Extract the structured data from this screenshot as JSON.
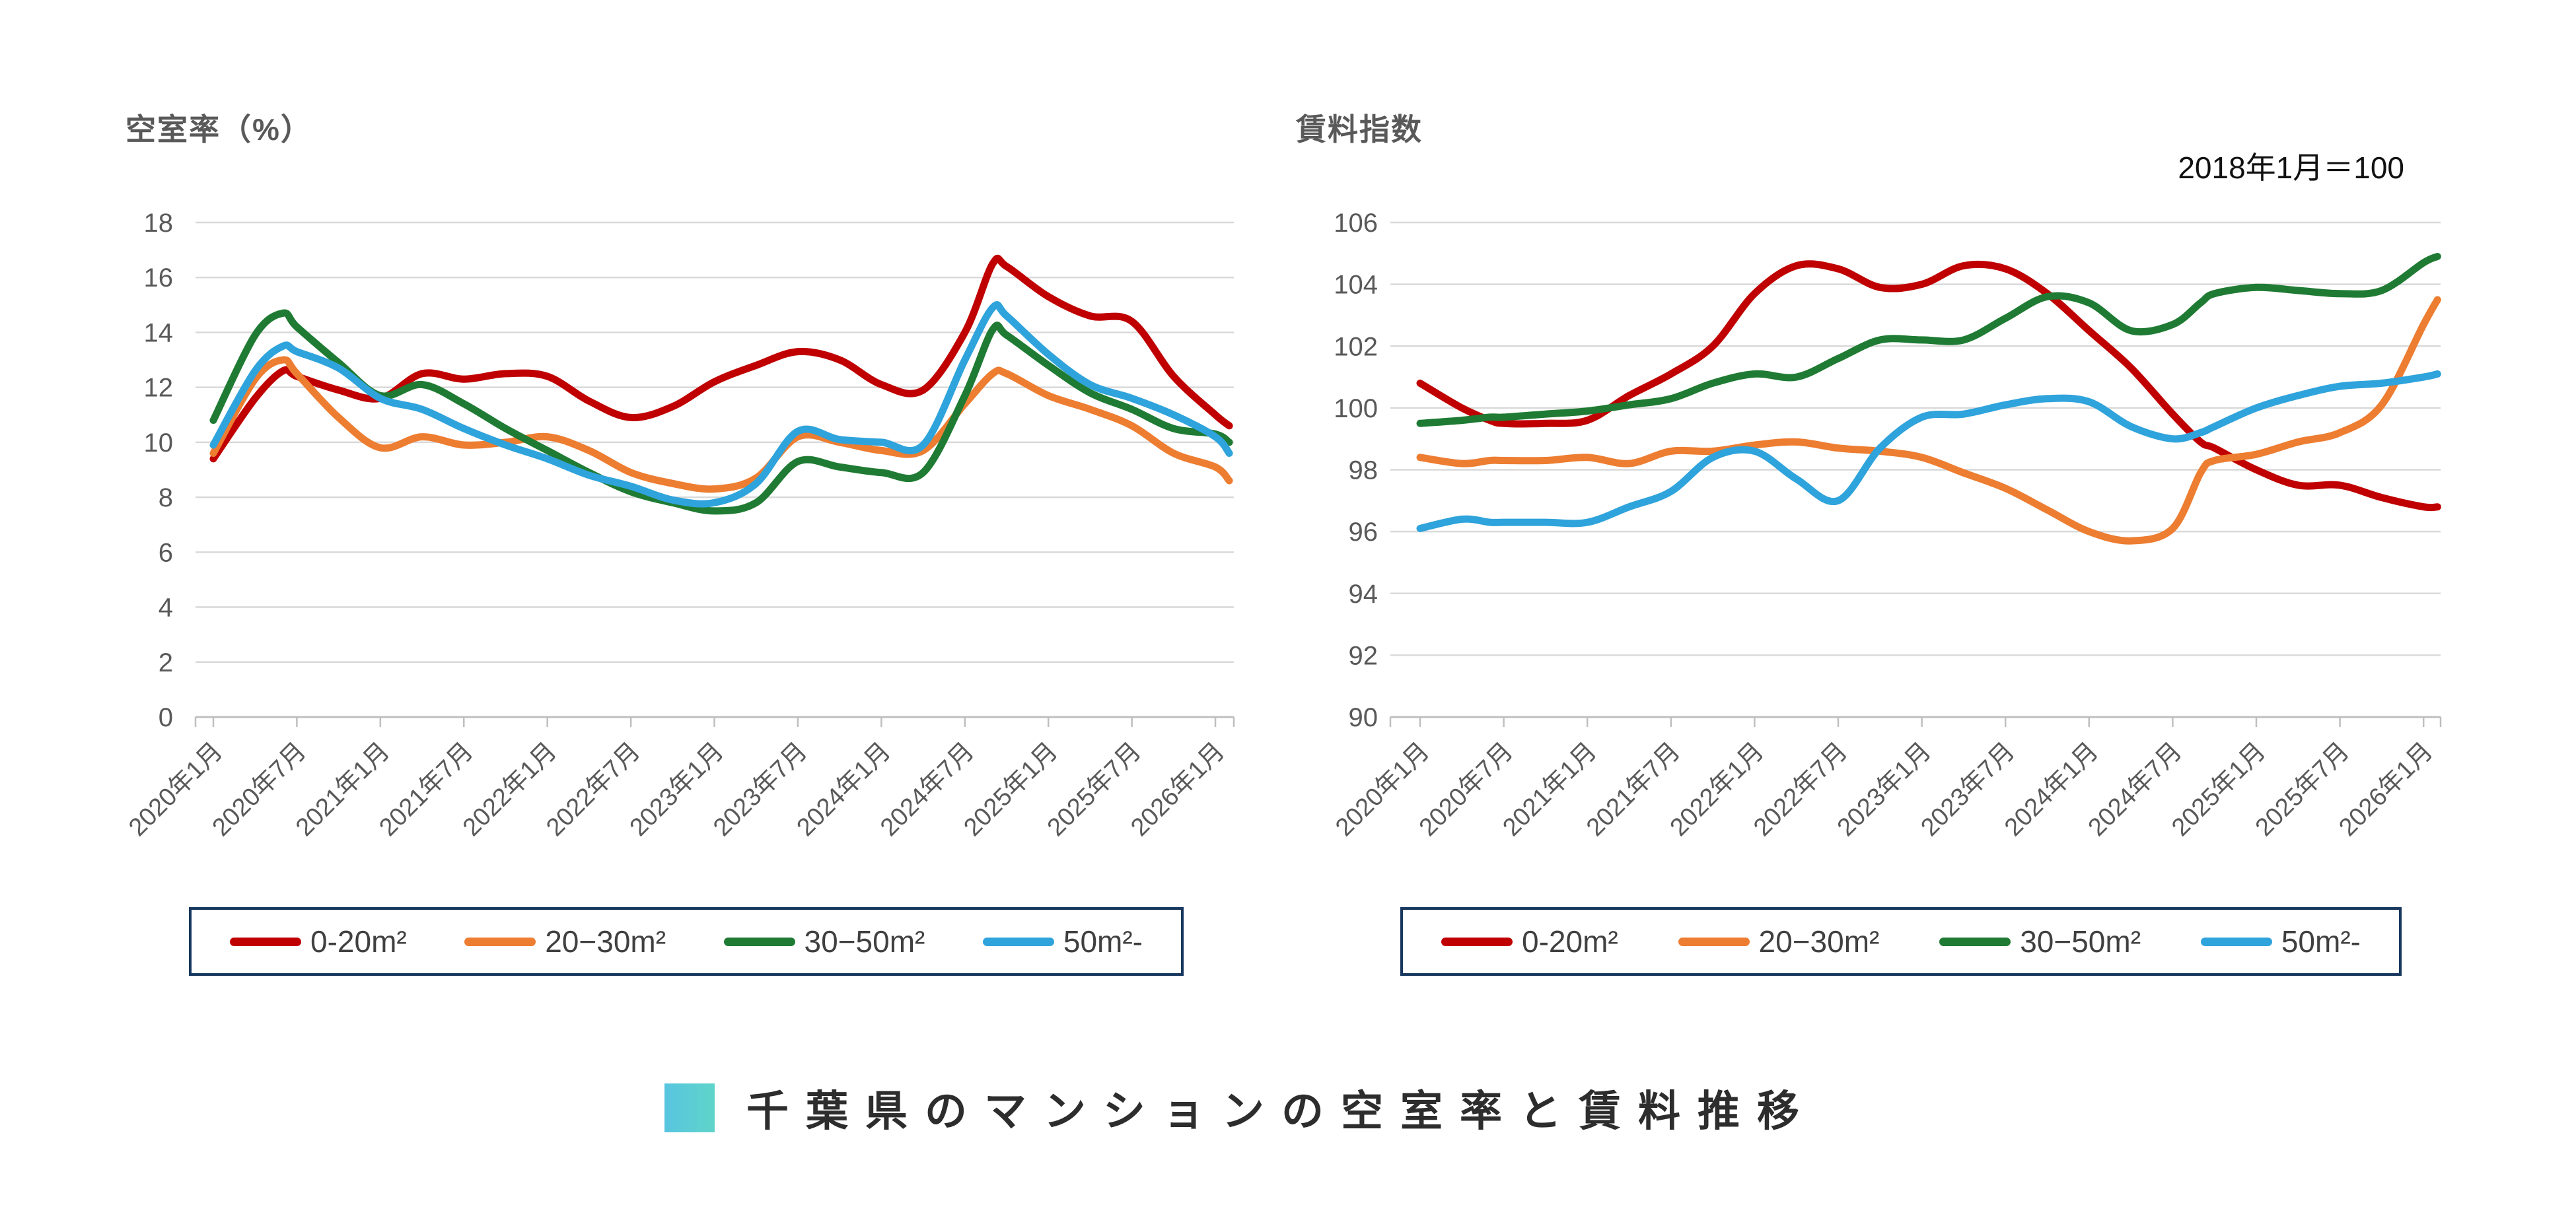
{
  "page_background": "#ffffff",
  "caption": {
    "text": "千葉県のマンションの空室率と賃料推移",
    "square_gradient": [
      "#58C5E0",
      "#5FD4C9"
    ]
  },
  "legend": {
    "border_color": "#17375E",
    "entries": [
      "0-20m²",
      "20−30m²",
      "30−50m²",
      "50m²-"
    ]
  },
  "colors": {
    "red": "#C00000",
    "orange": "#ED7D31",
    "green": "#1F7B33",
    "blue": "#2FA3DB",
    "gridline": "#D9D9D9",
    "axis": "#BFBFBF",
    "tick_text": "#595959"
  },
  "chart_data": [
    {
      "type": "line",
      "title": "空室率（%）",
      "subtitle": "",
      "ylabel": "",
      "ylim": [
        0,
        18
      ],
      "y_tick_step": 2,
      "y_tick_labels": [
        "0",
        "2",
        "4",
        "6",
        "8",
        "10",
        "12",
        "14",
        "16",
        "18"
      ],
      "grid": true,
      "legend_position": "bottom",
      "x_tick_labels": [
        "2020年1月",
        "2020年7月",
        "2021年1月",
        "2021年7月",
        "2022年1月",
        "2022年7月",
        "2023年1月",
        "2023年7月",
        "2024年1月",
        "2024年7月",
        "2025年1月",
        "2025年7月",
        "2026年1月"
      ],
      "months": [
        0,
        3,
        5,
        6,
        9,
        12,
        15,
        18,
        21,
        24,
        27,
        30,
        33,
        36,
        39,
        42,
        45,
        48,
        51,
        54,
        56,
        57,
        60,
        63,
        66,
        69,
        72,
        73
      ],
      "series": [
        {
          "name": "0-20m²",
          "color": "#C00000",
          "values": [
            9.4,
            11.6,
            12.6,
            12.4,
            11.9,
            11.6,
            12.5,
            12.3,
            12.5,
            12.4,
            11.5,
            10.9,
            11.3,
            12.2,
            12.8,
            13.3,
            13.0,
            12.1,
            11.9,
            14.0,
            16.5,
            16.4,
            15.3,
            14.6,
            14.4,
            12.4,
            11.0,
            10.6
          ]
        },
        {
          "name": "20−30m²",
          "color": "#ED7D31",
          "values": [
            9.6,
            12.3,
            13.0,
            12.5,
            10.9,
            9.8,
            10.2,
            9.9,
            10.0,
            10.2,
            9.7,
            8.9,
            8.5,
            8.3,
            8.7,
            10.2,
            10.0,
            9.7,
            9.7,
            11.4,
            12.5,
            12.5,
            11.7,
            11.2,
            10.6,
            9.6,
            9.1,
            8.6
          ]
        },
        {
          "name": "30−50m²",
          "color": "#1F7B33",
          "values": [
            10.8,
            13.9,
            14.7,
            14.2,
            12.9,
            11.7,
            12.1,
            11.4,
            10.5,
            9.7,
            8.9,
            8.2,
            7.8,
            7.5,
            7.8,
            9.3,
            9.1,
            8.9,
            8.9,
            11.7,
            14.1,
            13.9,
            12.8,
            11.8,
            11.2,
            10.5,
            10.3,
            10.0
          ]
        },
        {
          "name": "50m²-",
          "color": "#2FA3DB",
          "values": [
            9.9,
            12.6,
            13.5,
            13.3,
            12.7,
            11.6,
            11.2,
            10.5,
            9.9,
            9.4,
            8.8,
            8.4,
            7.9,
            7.8,
            8.5,
            10.4,
            10.1,
            10.0,
            9.9,
            13.0,
            14.9,
            14.6,
            13.2,
            12.1,
            11.6,
            11.0,
            10.2,
            9.6
          ]
        }
      ]
    },
    {
      "type": "line",
      "title": "賃料指数",
      "subtitle": "2018年1月＝100",
      "ylabel": "",
      "ylim": [
        90,
        106
      ],
      "y_tick_step": 2,
      "y_tick_labels": [
        "90",
        "92",
        "94",
        "96",
        "98",
        "100",
        "102",
        "104",
        "106"
      ],
      "grid": true,
      "legend_position": "bottom",
      "x_tick_labels": [
        "2020年1月",
        "2020年7月",
        "2021年1月",
        "2021年7月",
        "2022年1月",
        "2022年7月",
        "2023年1月",
        "2023年7月",
        "2024年1月",
        "2024年7月",
        "2025年1月",
        "2025年7月",
        "2026年1月"
      ],
      "months": [
        0,
        3,
        5,
        6,
        9,
        12,
        15,
        18,
        21,
        24,
        27,
        30,
        33,
        36,
        39,
        42,
        45,
        48,
        51,
        54,
        56,
        57,
        60,
        63,
        66,
        69,
        72,
        73
      ],
      "series": [
        {
          "name": "0-20m²",
          "color": "#C00000",
          "values": [
            100.8,
            100.0,
            99.6,
            99.5,
            99.5,
            99.6,
            100.4,
            101.1,
            102.0,
            103.7,
            104.6,
            104.5,
            103.9,
            104.0,
            104.6,
            104.5,
            103.7,
            102.5,
            101.3,
            99.8,
            98.9,
            98.7,
            98.0,
            97.5,
            97.5,
            97.1,
            96.8,
            96.8
          ]
        },
        {
          "name": "20−30m²",
          "color": "#ED7D31",
          "values": [
            98.4,
            98.2,
            98.3,
            98.3,
            98.3,
            98.4,
            98.2,
            98.6,
            98.6,
            98.8,
            98.9,
            98.7,
            98.6,
            98.4,
            97.9,
            97.4,
            96.7,
            96.0,
            95.7,
            96.1,
            97.9,
            98.3,
            98.5,
            98.9,
            99.2,
            100.1,
            102.7,
            103.5
          ]
        },
        {
          "name": "30−50m²",
          "color": "#1F7B33",
          "values": [
            99.5,
            99.6,
            99.7,
            99.7,
            99.8,
            99.9,
            100.1,
            100.3,
            100.8,
            101.1,
            101.0,
            101.6,
            102.2,
            102.2,
            102.2,
            102.9,
            103.6,
            103.4,
            102.5,
            102.7,
            103.4,
            103.7,
            103.9,
            103.8,
            103.7,
            103.8,
            104.7,
            104.9
          ]
        },
        {
          "name": "50m²-",
          "color": "#2FA3DB",
          "values": [
            96.1,
            96.4,
            96.3,
            96.3,
            96.3,
            96.3,
            96.8,
            97.3,
            98.4,
            98.6,
            97.7,
            97.0,
            98.7,
            99.7,
            99.8,
            100.1,
            100.3,
            100.2,
            99.4,
            99.0,
            99.2,
            99.4,
            100.0,
            100.4,
            100.7,
            100.8,
            101.0,
            101.1
          ]
        }
      ]
    }
  ]
}
